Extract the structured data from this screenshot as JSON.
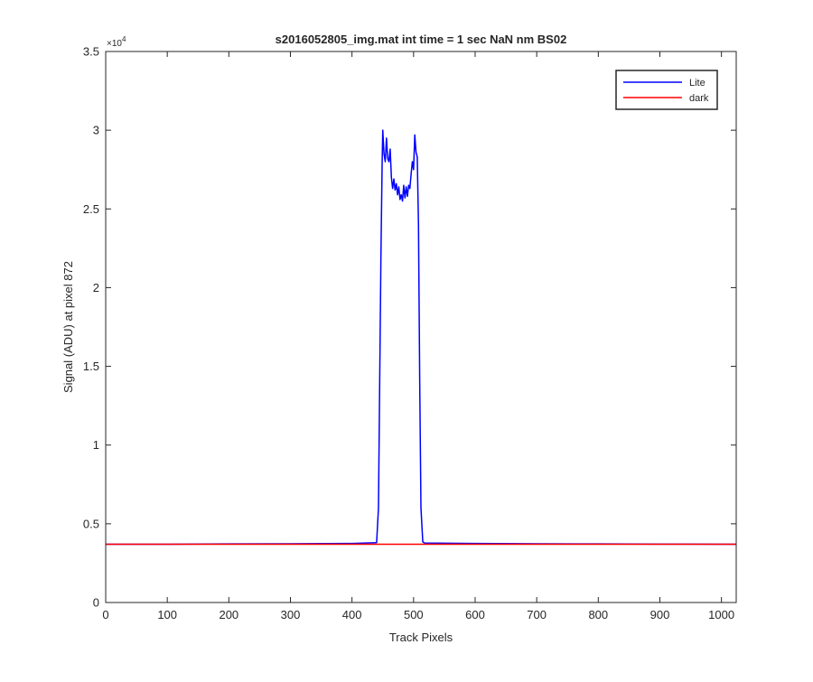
{
  "chart_data": {
    "type": "line",
    "title": "s2016052805_img.mat int time = 1 sec  NaN nm BS02",
    "xlabel": "Track Pixels",
    "ylabel": "Signal (ADU) at pixel 872",
    "y_exponent_label": "×10",
    "y_exponent_power": "4",
    "xlim": [
      0,
      1024
    ],
    "ylim": [
      0,
      35000
    ],
    "xticks": [
      0,
      100,
      200,
      300,
      400,
      500,
      600,
      700,
      800,
      900,
      1000
    ],
    "xtick_labels": [
      "0",
      "100",
      "200",
      "300",
      "400",
      "500",
      "600",
      "700",
      "800",
      "900",
      "1000"
    ],
    "yticks": [
      0,
      5000,
      10000,
      15000,
      20000,
      25000,
      30000,
      35000
    ],
    "ytick_labels": [
      "0",
      "0.5",
      "1",
      "1.5",
      "2",
      "2.5",
      "3",
      "3.5"
    ],
    "grid": false,
    "legend_position": "top-right",
    "series": [
      {
        "name": "Lite",
        "color": "#0000ff",
        "x": [
          0,
          100,
          200,
          300,
          400,
          440,
          443,
          445,
          447,
          449,
          450,
          452,
          454,
          456,
          458,
          460,
          462,
          464,
          466,
          468,
          470,
          472,
          474,
          476,
          478,
          480,
          482,
          484,
          486,
          488,
          490,
          492,
          494,
          496,
          498,
          500,
          502,
          504,
          506,
          508,
          510,
          512,
          515,
          518,
          600,
          700,
          800,
          900,
          1024
        ],
        "values": [
          3700,
          3700,
          3720,
          3730,
          3750,
          3800,
          6000,
          14000,
          22000,
          28000,
          30000,
          28500,
          28000,
          29500,
          28200,
          28000,
          28800,
          27000,
          26300,
          26900,
          26200,
          26600,
          25900,
          26400,
          25600,
          25900,
          25500,
          26500,
          25700,
          26400,
          25800,
          26500,
          26300,
          27200,
          28000,
          27500,
          29700,
          28600,
          28300,
          24000,
          14000,
          6000,
          3850,
          3780,
          3750,
          3730,
          3720,
          3710,
          3700
        ]
      },
      {
        "name": "dark",
        "color": "#ff0000",
        "x": [
          0,
          1024
        ],
        "values": [
          3700,
          3700
        ]
      }
    ]
  }
}
